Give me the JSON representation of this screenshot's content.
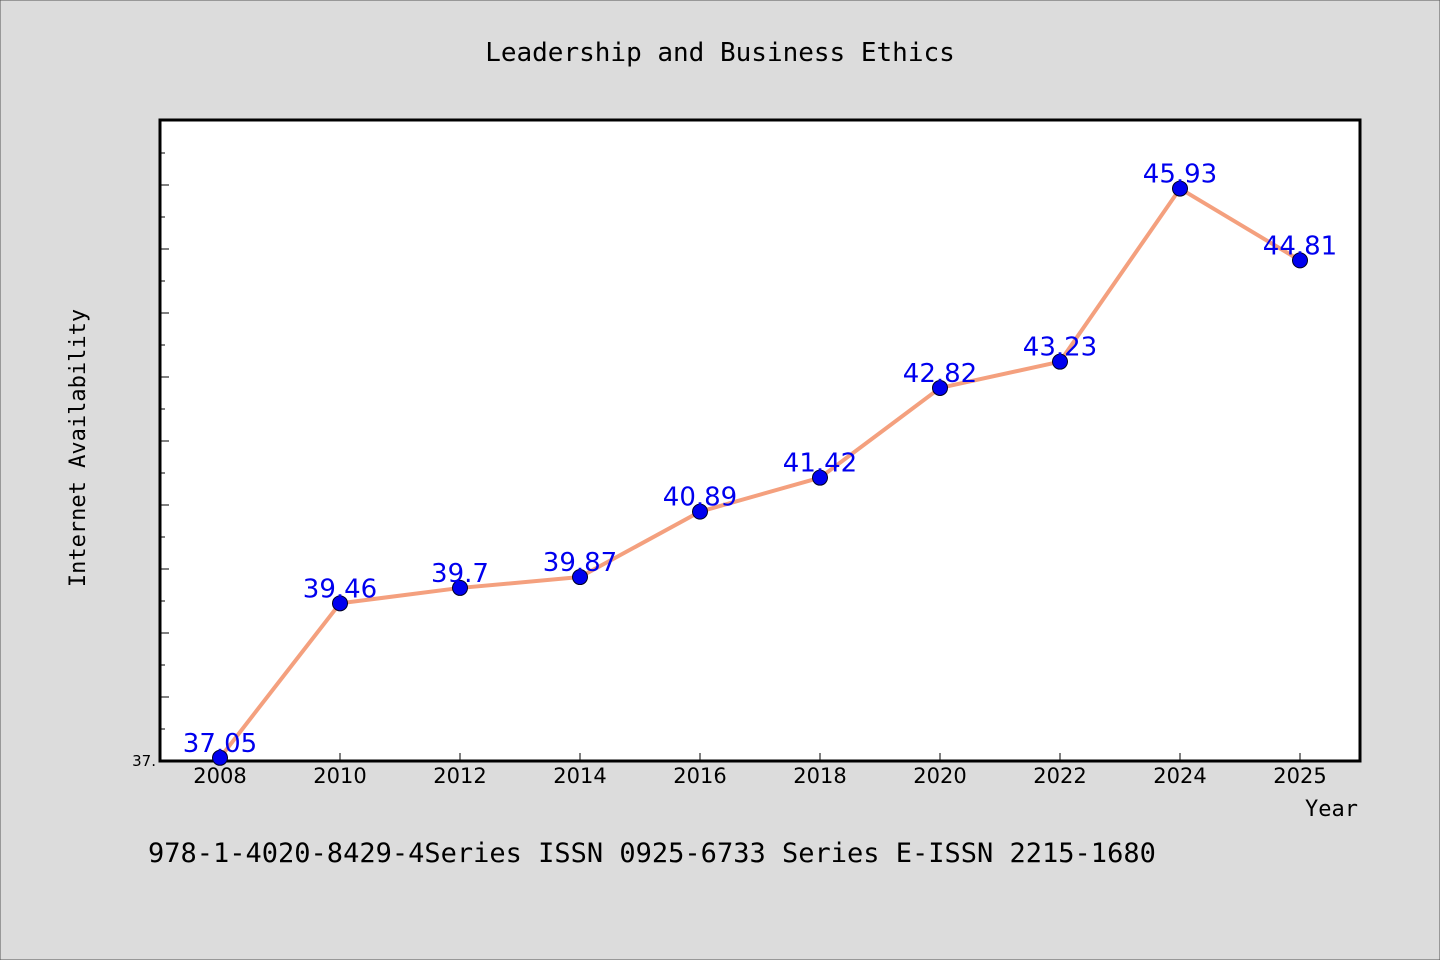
{
  "footer": "978-1-4020-8429-4Series ISSN 0925-6733 Series E-ISSN 2215-1680",
  "colors": {
    "background": "#dcdcdc",
    "plot_background": "#ffffff",
    "line": "#f4a07e",
    "marker": "#0000ee",
    "data_label": "#0000ee"
  },
  "chart_data": {
    "type": "line",
    "title": "Leadership and Business Ethics",
    "xlabel": "Year",
    "ylabel": "Internet Availability",
    "x": [
      "2008",
      "2010",
      "2012",
      "2014",
      "2016",
      "2018",
      "2020",
      "2022",
      "2024",
      "2025"
    ],
    "series": [
      {
        "values": [
          37.05,
          39.46,
          39.7,
          39.87,
          40.89,
          41.42,
          42.82,
          43.23,
          45.93,
          44.81
        ],
        "labels": [
          "37.05",
          "39.46",
          "39.7",
          "39.87",
          "40.89",
          "41.42",
          "42.82",
          "43.23",
          "45.93",
          "44.81"
        ]
      }
    ],
    "ylim": [
      37.0,
      47.0
    ],
    "ytick_label": "37.",
    "grid": false,
    "legend": "none"
  }
}
